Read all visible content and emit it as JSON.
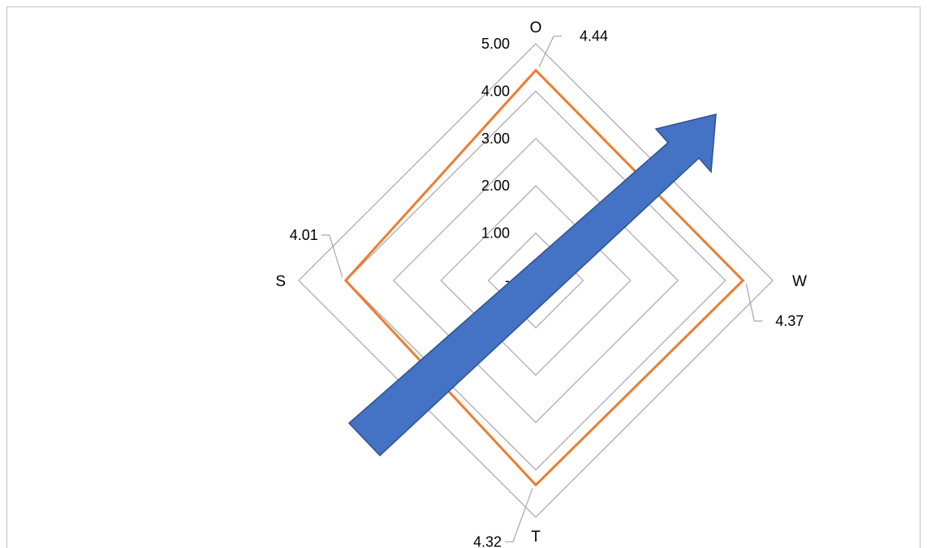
{
  "chart_data": {
    "type": "radar",
    "categories": [
      "O",
      "W",
      "T",
      "S"
    ],
    "series": [
      {
        "values": [
          4.44,
          4.37,
          4.32,
          4.01
        ],
        "color": "#ED7D31"
      }
    ],
    "data_labels": [
      "4.44",
      "4.37",
      "4.32",
      "4.01"
    ],
    "rlim": [
      0,
      5
    ],
    "ticks": [
      "-",
      "1.00",
      "2.00",
      "3.00",
      "4.00",
      "5.00"
    ],
    "grid_color": "#a6a6a6",
    "annotation": {
      "shape": "arrow",
      "direction": "up-right",
      "color": "#4472C4",
      "outline": "#2F528F"
    }
  }
}
